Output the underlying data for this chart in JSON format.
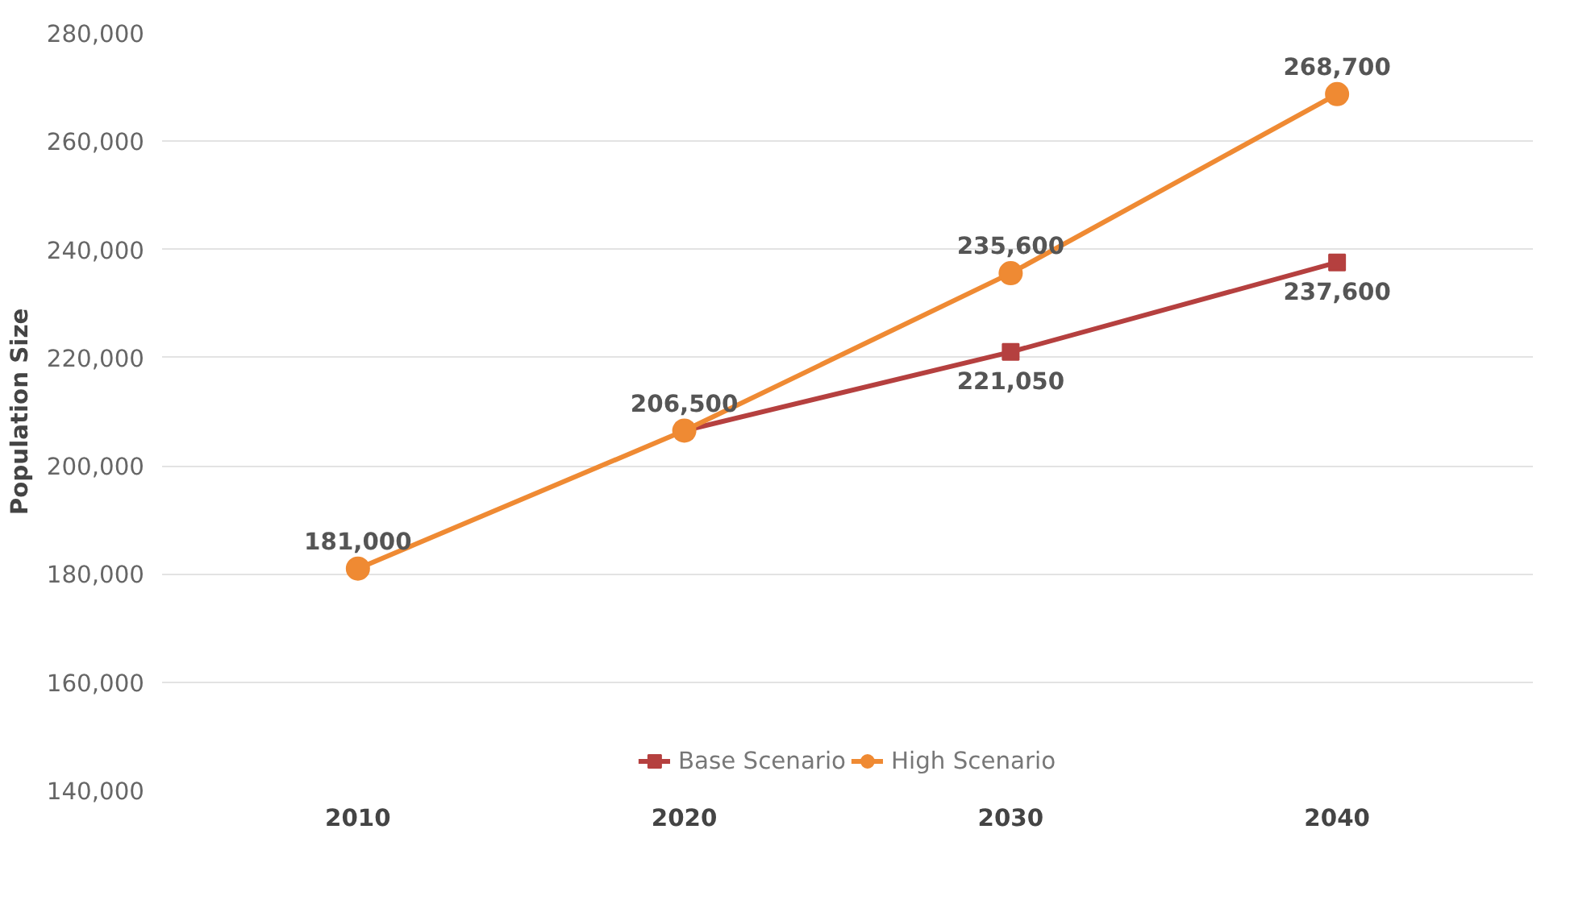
{
  "chart_data": {
    "type": "line",
    "ylabel": "Population Size",
    "categories": [
      "2010",
      "2020",
      "2030",
      "2040"
    ],
    "series": [
      {
        "name": "Base Scenario",
        "color": "#b5403f",
        "marker": "square",
        "values": [
          null,
          206500,
          221050,
          237600
        ],
        "value_labels": [
          null,
          null,
          "221,050",
          "237,600"
        ]
      },
      {
        "name": "High Scenario",
        "color": "#ef8a33",
        "marker": "circle",
        "values": [
          181000,
          206500,
          235600,
          268700
        ],
        "value_labels": [
          "181,000",
          "206,500",
          "235,600",
          "268,700"
        ]
      }
    ],
    "ylim": [
      140000,
      280000
    ],
    "yticks": [
      {
        "value": 140000,
        "label": "140,000"
      },
      {
        "value": 160000,
        "label": "160,000"
      },
      {
        "value": 180000,
        "label": "180,000"
      },
      {
        "value": 200000,
        "label": "200,000"
      },
      {
        "value": 220000,
        "label": "220,000"
      },
      {
        "value": 240000,
        "label": "240,000"
      },
      {
        "value": 260000,
        "label": "260,000"
      },
      {
        "value": 280000,
        "label": "280,000"
      }
    ],
    "grid": "y",
    "legend": "bottom",
    "line_style": "solid"
  }
}
